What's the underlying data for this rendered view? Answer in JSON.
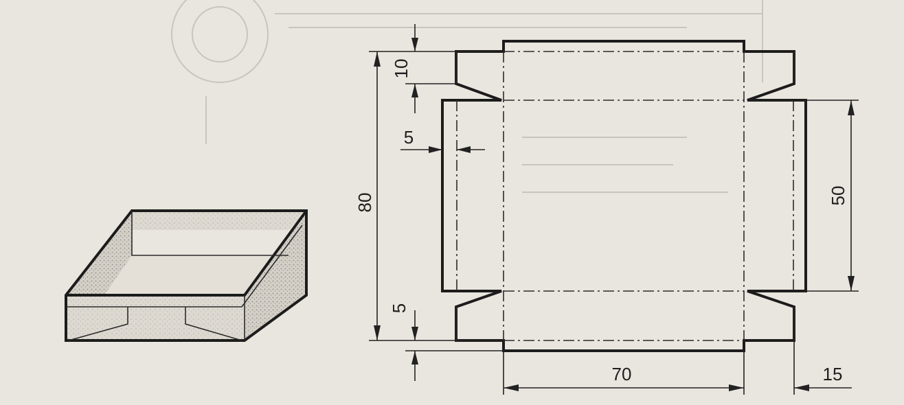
{
  "figure": {
    "description_labels": {
      "top_flap_height": "10",
      "total_height": "80",
      "glue_strip_width": "5",
      "bottom_gap": "5",
      "side_height": "50",
      "base_width": "70",
      "side_flap_width": "15"
    }
  },
  "colors": {
    "paper": "#e9e6df",
    "ink": "#1c1c1c",
    "shading": "#b9b6ae"
  }
}
